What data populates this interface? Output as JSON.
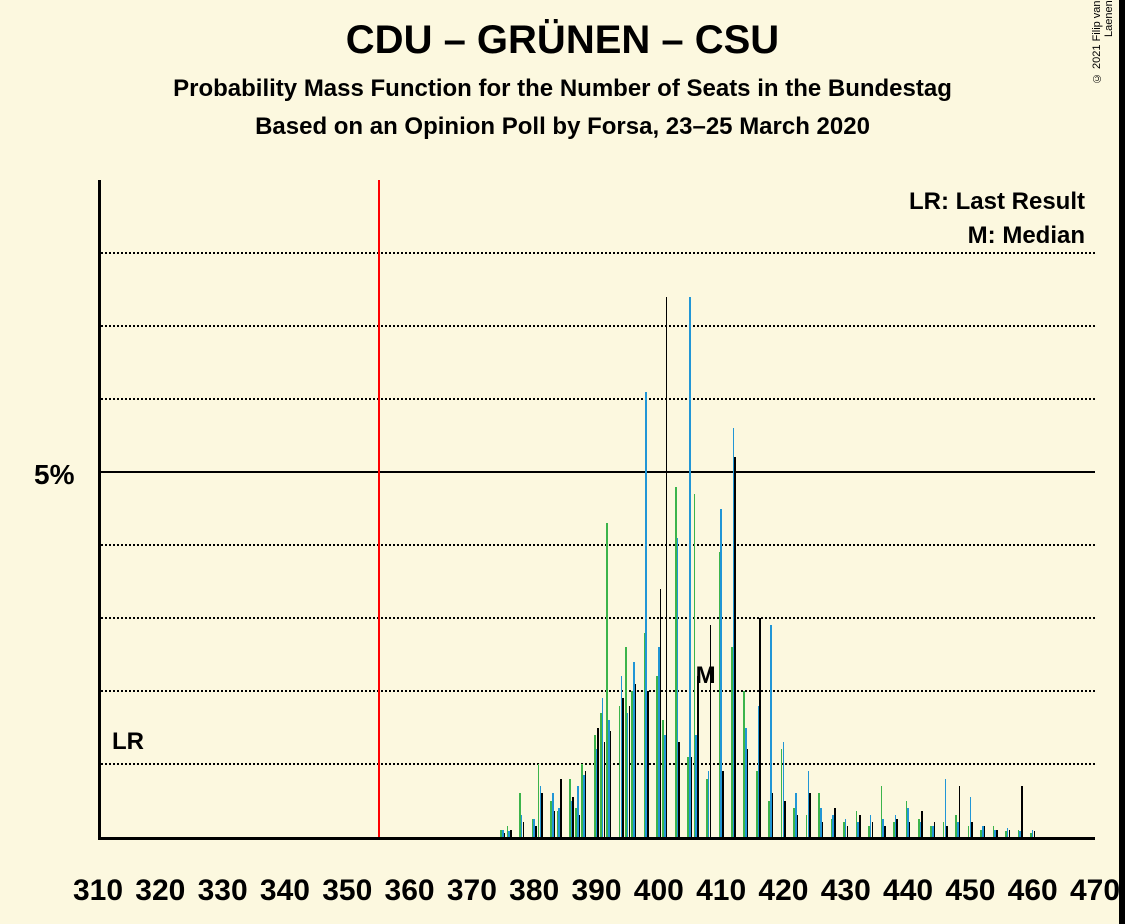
{
  "copyright": "© 2021 Filip van Laenen",
  "title": "CDU – GRÜNEN – CSU",
  "subtitle1": "Probability Mass Function for the Number of Seats in the Bundestag",
  "subtitle2": "Based on an Opinion Poll by Forsa, 23–25 March 2020",
  "ylabel_main": "5%",
  "legend_lr": "LR: Last Result",
  "legend_m": "M: Median",
  "annot_lr": "LR",
  "annot_m": "M",
  "chart": {
    "type": "bar",
    "background_color": "#fcf8df",
    "grid_color": "#000000",
    "axis_color": "#000000",
    "vline_last_result": {
      "x": 355,
      "color": "#ff0000"
    },
    "median_x": 408,
    "xlim": [
      310,
      470
    ],
    "xtick_step": 10,
    "xtick_labels": [
      "310",
      "320",
      "330",
      "340",
      "350",
      "360",
      "370",
      "380",
      "390",
      "400",
      "410",
      "420",
      "430",
      "440",
      "450",
      "460",
      "470"
    ],
    "ylim": [
      0,
      9
    ],
    "ytick_step": 1,
    "ytick_solid_at": 5,
    "series_colors": {
      "green": "#3cb44b",
      "blue": "#2196d6",
      "black": "#000000"
    },
    "bar_cluster_width": 0.82,
    "bars": [
      {
        "x": 375,
        "g": 0.1,
        "b": 0.1,
        "k": 0.05
      },
      {
        "x": 376,
        "g": 0.15,
        "b": 0.08,
        "k": 0.1
      },
      {
        "x": 378,
        "g": 0.6,
        "b": 0.3,
        "k": 0.2
      },
      {
        "x": 380,
        "g": 0.25,
        "b": 0.25,
        "k": 0.15
      },
      {
        "x": 381,
        "g": 1.0,
        "b": 0.7,
        "k": 0.6
      },
      {
        "x": 383,
        "g": 0.5,
        "b": 0.6,
        "k": 0.35
      },
      {
        "x": 384,
        "g": 0.35,
        "b": 0.4,
        "k": 0.8
      },
      {
        "x": 386,
        "g": 0.8,
        "b": 0.5,
        "k": 0.55
      },
      {
        "x": 387,
        "g": 0.4,
        "b": 0.7,
        "k": 0.3
      },
      {
        "x": 388,
        "g": 1.0,
        "b": 0.85,
        "k": 0.9
      },
      {
        "x": 390,
        "g": 1.4,
        "b": 1.2,
        "k": 1.5
      },
      {
        "x": 391,
        "g": 1.7,
        "b": 1.9,
        "k": 1.3
      },
      {
        "x": 392,
        "g": 4.3,
        "b": 1.6,
        "k": 1.45
      },
      {
        "x": 394,
        "g": 1.8,
        "b": 2.2,
        "k": 1.9
      },
      {
        "x": 395,
        "g": 2.6,
        "b": 1.7,
        "k": 1.8
      },
      {
        "x": 396,
        "g": 2.0,
        "b": 2.4,
        "k": 2.1
      },
      {
        "x": 398,
        "g": 2.8,
        "b": 6.1,
        "k": 2.0
      },
      {
        "x": 400,
        "g": 2.2,
        "b": 2.6,
        "k": 3.4
      },
      {
        "x": 401,
        "g": 1.6,
        "b": 1.4,
        "k": 7.4
      },
      {
        "x": 403,
        "g": 4.8,
        "b": 4.1,
        "k": 1.3
      },
      {
        "x": 405,
        "g": 1.1,
        "b": 7.4,
        "k": 1.1
      },
      {
        "x": 406,
        "g": 4.7,
        "b": 1.4,
        "k": 2.2
      },
      {
        "x": 408,
        "g": 0.8,
        "b": 0.9,
        "k": 2.9
      },
      {
        "x": 410,
        "g": 3.9,
        "b": 4.5,
        "k": 0.9
      },
      {
        "x": 412,
        "g": 2.6,
        "b": 5.6,
        "k": 5.2
      },
      {
        "x": 414,
        "g": 2.0,
        "b": 1.5,
        "k": 1.2
      },
      {
        "x": 416,
        "g": 0.9,
        "b": 1.8,
        "k": 3.0
      },
      {
        "x": 418,
        "g": 0.5,
        "b": 2.9,
        "k": 0.6
      },
      {
        "x": 420,
        "g": 1.2,
        "b": 1.3,
        "k": 0.5
      },
      {
        "x": 422,
        "g": 0.4,
        "b": 0.6,
        "k": 0.3
      },
      {
        "x": 424,
        "g": 0.3,
        "b": 0.9,
        "k": 0.6
      },
      {
        "x": 426,
        "g": 0.6,
        "b": 0.4,
        "k": 0.2
      },
      {
        "x": 428,
        "g": 0.25,
        "b": 0.3,
        "k": 0.4
      },
      {
        "x": 430,
        "g": 0.2,
        "b": 0.25,
        "k": 0.15
      },
      {
        "x": 432,
        "g": 0.35,
        "b": 0.2,
        "k": 0.3
      },
      {
        "x": 434,
        "g": 0.15,
        "b": 0.3,
        "k": 0.2
      },
      {
        "x": 436,
        "g": 0.7,
        "b": 0.25,
        "k": 0.15
      },
      {
        "x": 438,
        "g": 0.2,
        "b": 0.3,
        "k": 0.25
      },
      {
        "x": 440,
        "g": 0.5,
        "b": 0.4,
        "k": 0.2
      },
      {
        "x": 442,
        "g": 0.25,
        "b": 0.2,
        "k": 0.35
      },
      {
        "x": 444,
        "g": 0.15,
        "b": 0.15,
        "k": 0.2
      },
      {
        "x": 446,
        "g": 0.2,
        "b": 0.8,
        "k": 0.15
      },
      {
        "x": 448,
        "g": 0.3,
        "b": 0.2,
        "k": 0.7
      },
      {
        "x": 450,
        "g": 0.15,
        "b": 0.55,
        "k": 0.2
      },
      {
        "x": 452,
        "g": 0.1,
        "b": 0.15,
        "k": 0.15
      },
      {
        "x": 454,
        "g": 0.15,
        "b": 0.1,
        "k": 0.1
      },
      {
        "x": 456,
        "g": 0.08,
        "b": 0.12,
        "k": 0.1
      },
      {
        "x": 458,
        "g": 0.1,
        "b": 0.08,
        "k": 0.7
      },
      {
        "x": 460,
        "g": 0.06,
        "b": 0.1,
        "k": 0.08
      }
    ]
  }
}
